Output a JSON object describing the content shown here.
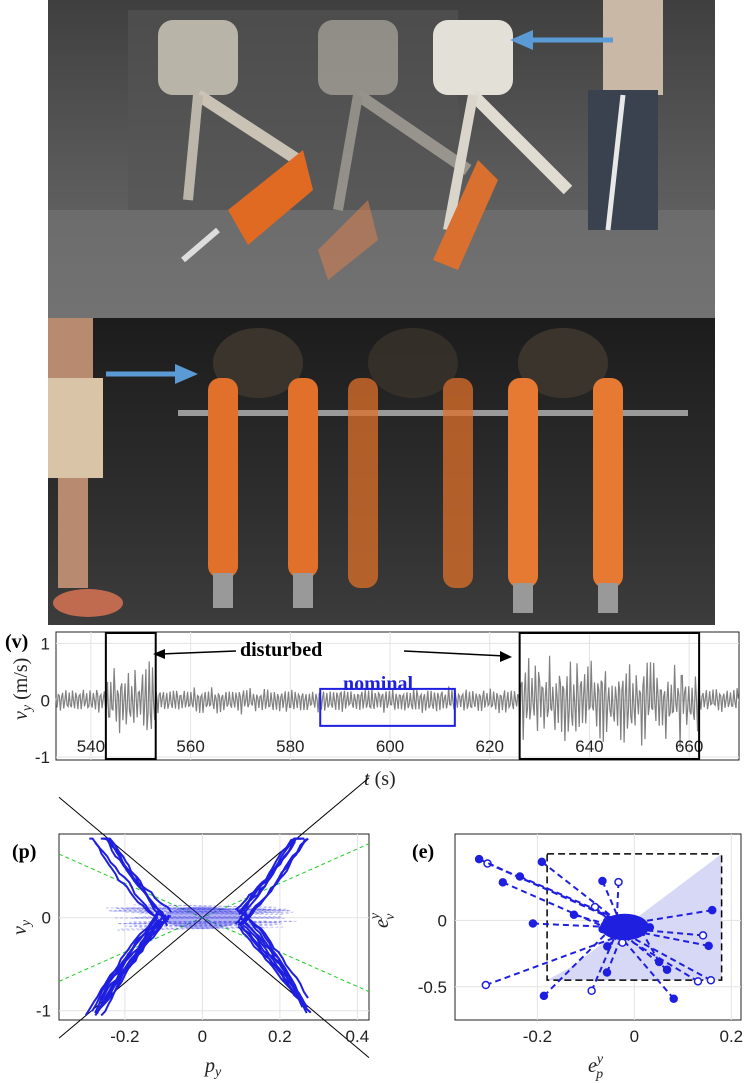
{
  "panels": {
    "v": {
      "label": "(v)"
    },
    "p": {
      "label": "(p)"
    },
    "e": {
      "label": "(e)"
    }
  },
  "photos": [
    {
      "name": "photo-top-backward-push"
    },
    {
      "name": "photo-bottom-lateral-push"
    }
  ],
  "colors": {
    "trace": "#808080",
    "accent": "#1f1fe0",
    "arrow": "#5b9bd5",
    "box": "#000000",
    "green": "#22cc22",
    "fill": "#d6d8f5"
  },
  "chart_data": [
    {
      "type": "line",
      "panel": "(v)",
      "xlabel": "t (s)",
      "ylabel": "v_y (m/s)",
      "xlim": [
        533,
        670
      ],
      "ylim": [
        -1.05,
        1.2
      ],
      "xticks": [
        "540",
        "560",
        "580",
        "600",
        "620",
        "640",
        "660"
      ],
      "yticks": [
        "1",
        "0",
        "-1"
      ],
      "grid": true,
      "annotations": {
        "disturbed": "disturbed",
        "nominal": "nominal"
      },
      "regions": [
        {
          "name": "disturbed",
          "x": [
            543,
            553
          ]
        },
        {
          "name": "nominal",
          "x": [
            586,
            613
          ]
        },
        {
          "name": "disturbed",
          "x": [
            626,
            662
          ]
        }
      ],
      "series": [
        {
          "amplitude_nominal": 0.25,
          "amplitude_disturbed": 0.9
        }
      ]
    },
    {
      "type": "scatter",
      "panel": "(p)",
      "xlabel": "p_y",
      "ylabel": "v_y",
      "xlim": [
        -0.37,
        0.43
      ],
      "ylim": [
        -1.1,
        0.9
      ],
      "xticks": [
        "-0.2",
        "0",
        "0.2",
        "0.4"
      ],
      "yticks": [
        "0",
        "-1"
      ],
      "grid": true,
      "lines": [
        {
          "style": "solid",
          "color": "black",
          "slope": 3.5
        },
        {
          "style": "solid",
          "color": "black",
          "slope": -3.5
        },
        {
          "style": "dashed",
          "color": "green",
          "slope": 1.85
        },
        {
          "style": "dashed",
          "color": "green",
          "slope": -1.85
        }
      ]
    },
    {
      "type": "scatter",
      "panel": "(e)",
      "xlabel": "e_p^y",
      "ylabel": "e_v^y",
      "xlim": [
        -0.37,
        0.22
      ],
      "ylim": [
        -0.75,
        0.65
      ],
      "xticks": [
        "-0.2",
        "0",
        "0.2"
      ],
      "yticks": [
        "0",
        "-0.5"
      ],
      "grid": true,
      "bound_box": {
        "x": [
          -0.18,
          0.18
        ],
        "y": [
          -0.45,
          0.5
        ]
      },
      "cluster_center": [
        -0.02,
        -0.05
      ]
    }
  ]
}
